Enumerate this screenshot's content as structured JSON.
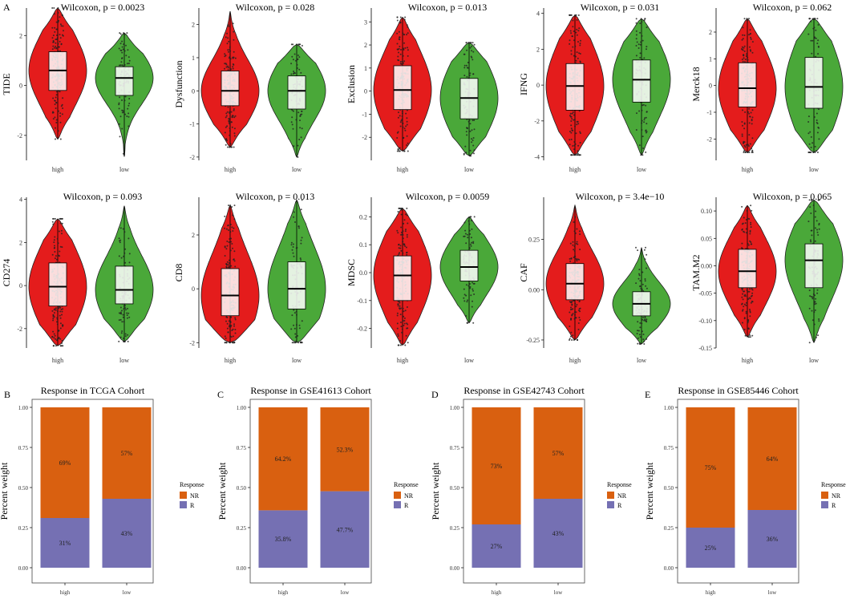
{
  "colors": {
    "high": "#e41c1c",
    "low": "#4aa839",
    "NR": "#d96010",
    "R": "#7570b3"
  },
  "panel_letters": {
    "violin": "A",
    "bars": [
      "B",
      "C",
      "D",
      "E"
    ]
  },
  "chart_data": [
    {
      "type": "violin",
      "ylabel": "TIDE",
      "categories": [
        "high",
        "low"
      ],
      "stat_text": "Wilcoxon, p = 0.0023",
      "y_ticks": [
        "-2",
        "0",
        "2"
      ],
      "ylim": [
        -3,
        3.1
      ],
      "groups": [
        {
          "min": -2.15,
          "q1": -0.2,
          "median": 0.6,
          "q3": 1.35,
          "max": 3.1
        },
        {
          "min": -2.85,
          "q1": -0.4,
          "median": 0.3,
          "q3": 0.75,
          "max": 2.1
        }
      ]
    },
    {
      "type": "violin",
      "ylabel": "Dysfunction",
      "categories": [
        "high",
        "low"
      ],
      "stat_text": "Wilcoxon, p = 0.028",
      "y_ticks": [
        "-2",
        "-1",
        "0",
        "1",
        "2"
      ],
      "ylim": [
        -2.1,
        2.5
      ],
      "groups": [
        {
          "min": -1.7,
          "q1": -0.45,
          "median": 0.0,
          "q3": 0.6,
          "max": 2.4
        },
        {
          "min": -2.0,
          "q1": -0.55,
          "median": 0.0,
          "q3": 0.45,
          "max": 1.4
        }
      ]
    },
    {
      "type": "violin",
      "ylabel": "Exclusion",
      "categories": [
        "high",
        "low"
      ],
      "stat_text": "Wilcoxon, p = 0.013",
      "y_ticks": [
        "-2",
        "-1",
        "0",
        "1",
        "2",
        "3"
      ],
      "ylim": [
        -3,
        3.6
      ],
      "groups": [
        {
          "min": -2.6,
          "q1": -0.8,
          "median": 0.05,
          "q3": 1.1,
          "max": 3.2
        },
        {
          "min": -2.8,
          "q1": -1.2,
          "median": -0.3,
          "q3": 0.55,
          "max": 2.1
        }
      ]
    },
    {
      "type": "violin",
      "ylabel": "IFNG",
      "categories": [
        "high",
        "low"
      ],
      "stat_text": "Wilcoxon, p = 0.031",
      "y_ticks": [
        "-4",
        "-2",
        "0",
        "2",
        "4"
      ],
      "ylim": [
        -4.2,
        4.3
      ],
      "groups": [
        {
          "min": -3.9,
          "q1": -1.4,
          "median": -0.05,
          "q3": 1.2,
          "max": 3.9
        },
        {
          "min": -3.9,
          "q1": -0.95,
          "median": 0.3,
          "q3": 1.4,
          "max": 3.7
        }
      ]
    },
    {
      "type": "violin",
      "ylabel": "Merck18",
      "categories": [
        "high",
        "low"
      ],
      "stat_text": "Wilcoxon, p = 0.062",
      "y_ticks": [
        "-2",
        "-1",
        "0",
        "1",
        "2"
      ],
      "ylim": [
        -2.8,
        2.9
      ],
      "groups": [
        {
          "min": -2.5,
          "q1": -0.8,
          "median": -0.1,
          "q3": 0.85,
          "max": 2.5
        },
        {
          "min": -2.5,
          "q1": -0.85,
          "median": -0.05,
          "q3": 1.05,
          "max": 2.5
        }
      ]
    },
    {
      "type": "violin",
      "ylabel": "CD274",
      "categories": [
        "high",
        "low"
      ],
      "stat_text": "Wilcoxon, p = 0.093",
      "y_ticks": [
        "-2",
        "0",
        "2",
        "4"
      ],
      "ylim": [
        -2.9,
        4.1
      ],
      "groups": [
        {
          "min": -2.8,
          "q1": -0.95,
          "median": -0.05,
          "q3": 1.05,
          "max": 3.1
        },
        {
          "min": -2.6,
          "q1": -0.85,
          "median": -0.2,
          "q3": 0.9,
          "max": 3.7
        }
      ]
    },
    {
      "type": "violin",
      "ylabel": "CD8",
      "categories": [
        "high",
        "low"
      ],
      "stat_text": "Wilcoxon, p = 0.013",
      "y_ticks": [
        "-2",
        "0",
        "2"
      ],
      "ylim": [
        -2.2,
        3.4
      ],
      "groups": [
        {
          "min": -2.0,
          "q1": -1.0,
          "median": -0.25,
          "q3": 0.75,
          "max": 3.1
        },
        {
          "min": -2.0,
          "q1": -0.75,
          "median": 0.0,
          "q3": 1.0,
          "max": 3.3
        }
      ]
    },
    {
      "type": "violin",
      "ylabel": "MDSC",
      "categories": [
        "high",
        "low"
      ],
      "stat_text": "Wilcoxon, p = 0.0059",
      "y_ticks": [
        "-0.2",
        "-0.1",
        "0.0",
        "0.1",
        "0.2"
      ],
      "ylim": [
        -0.27,
        0.27
      ],
      "groups": [
        {
          "min": -0.26,
          "q1": -0.1,
          "median": -0.01,
          "q3": 0.06,
          "max": 0.23
        },
        {
          "min": -0.18,
          "q1": -0.03,
          "median": 0.02,
          "q3": 0.08,
          "max": 0.2
        }
      ]
    },
    {
      "type": "violin",
      "ylabel": "CAF",
      "categories": [
        "high",
        "low"
      ],
      "stat_text": "Wilcoxon, p = 3.4e−10",
      "y_ticks": [
        "-0.25",
        "0.00",
        "0.25"
      ],
      "ylim": [
        -0.29,
        0.46
      ],
      "groups": [
        {
          "min": -0.25,
          "q1": -0.05,
          "median": 0.03,
          "q3": 0.13,
          "max": 0.42
        },
        {
          "min": -0.27,
          "q1": -0.13,
          "median": -0.07,
          "q3": -0.01,
          "max": 0.21
        }
      ]
    },
    {
      "type": "violin",
      "ylabel": "TAM.M2",
      "categories": [
        "high",
        "low"
      ],
      "stat_text": "Wilcoxon, p = 0.065",
      "y_ticks": [
        "-0.15",
        "-0.10",
        "-0.05",
        "0.00",
        "0.05",
        "0.10"
      ],
      "ylim": [
        -0.15,
        0.125
      ],
      "groups": [
        {
          "min": -0.13,
          "q1": -0.04,
          "median": -0.01,
          "q3": 0.03,
          "max": 0.11
        },
        {
          "min": -0.14,
          "q1": -0.04,
          "median": 0.01,
          "q3": 0.04,
          "max": 0.12
        }
      ]
    },
    {
      "type": "bar",
      "stacked": true,
      "title": "Response in TCGA Cohort",
      "ylabel": "Percent weight",
      "categories": [
        "high",
        "low"
      ],
      "y_ticks": [
        "0.00",
        "0.25",
        "0.50",
        "0.75",
        "1.00"
      ],
      "ylim": [
        0,
        1
      ],
      "series": [
        {
          "name": "NR",
          "values": [
            0.69,
            0.57
          ],
          "labels": [
            "69%",
            "57%"
          ]
        },
        {
          "name": "R",
          "values": [
            0.31,
            0.43
          ],
          "labels": [
            "31%",
            "43%"
          ]
        }
      ],
      "legend": {
        "title": "Response",
        "items": [
          "NR",
          "R"
        ],
        "position": "right"
      }
    },
    {
      "type": "bar",
      "stacked": true,
      "title": "Response in GSE41613 Cohort",
      "ylabel": "Percent weight",
      "categories": [
        "high",
        "low"
      ],
      "y_ticks": [
        "0.00",
        "0.25",
        "0.50",
        "0.75",
        "1.00"
      ],
      "ylim": [
        0,
        1
      ],
      "series": [
        {
          "name": "NR",
          "values": [
            0.642,
            0.523
          ],
          "labels": [
            "64.2%",
            "52.3%"
          ]
        },
        {
          "name": "R",
          "values": [
            0.358,
            0.477
          ],
          "labels": [
            "35.8%",
            "47.7%"
          ]
        }
      ],
      "legend": {
        "title": "Response",
        "items": [
          "NR",
          "R"
        ],
        "position": "right"
      }
    },
    {
      "type": "bar",
      "stacked": true,
      "title": "Response in GSE42743 Cohort",
      "ylabel": "Percent weight",
      "categories": [
        "high",
        "low"
      ],
      "y_ticks": [
        "0.00",
        "0.25",
        "0.50",
        "0.75",
        "1.00"
      ],
      "ylim": [
        0,
        1
      ],
      "series": [
        {
          "name": "NR",
          "values": [
            0.73,
            0.57
          ],
          "labels": [
            "73%",
            "57%"
          ]
        },
        {
          "name": "R",
          "values": [
            0.27,
            0.43
          ],
          "labels": [
            "27%",
            "43%"
          ]
        }
      ],
      "legend": {
        "title": "Response",
        "items": [
          "NR",
          "R"
        ],
        "position": "right"
      }
    },
    {
      "type": "bar",
      "stacked": true,
      "title": "Response in GSE85446 Cohort",
      "ylabel": "Percent weight",
      "categories": [
        "high",
        "low"
      ],
      "y_ticks": [
        "0.00",
        "0.25",
        "0.50",
        "0.75",
        "1.00"
      ],
      "ylim": [
        0,
        1
      ],
      "series": [
        {
          "name": "NR",
          "values": [
            0.75,
            0.64
          ],
          "labels": [
            "75%",
            "64%"
          ]
        },
        {
          "name": "R",
          "values": [
            0.25,
            0.36
          ],
          "labels": [
            "25%",
            "36%"
          ]
        }
      ],
      "legend": {
        "title": "Response",
        "items": [
          "NR",
          "R"
        ],
        "position": "right"
      }
    }
  ]
}
